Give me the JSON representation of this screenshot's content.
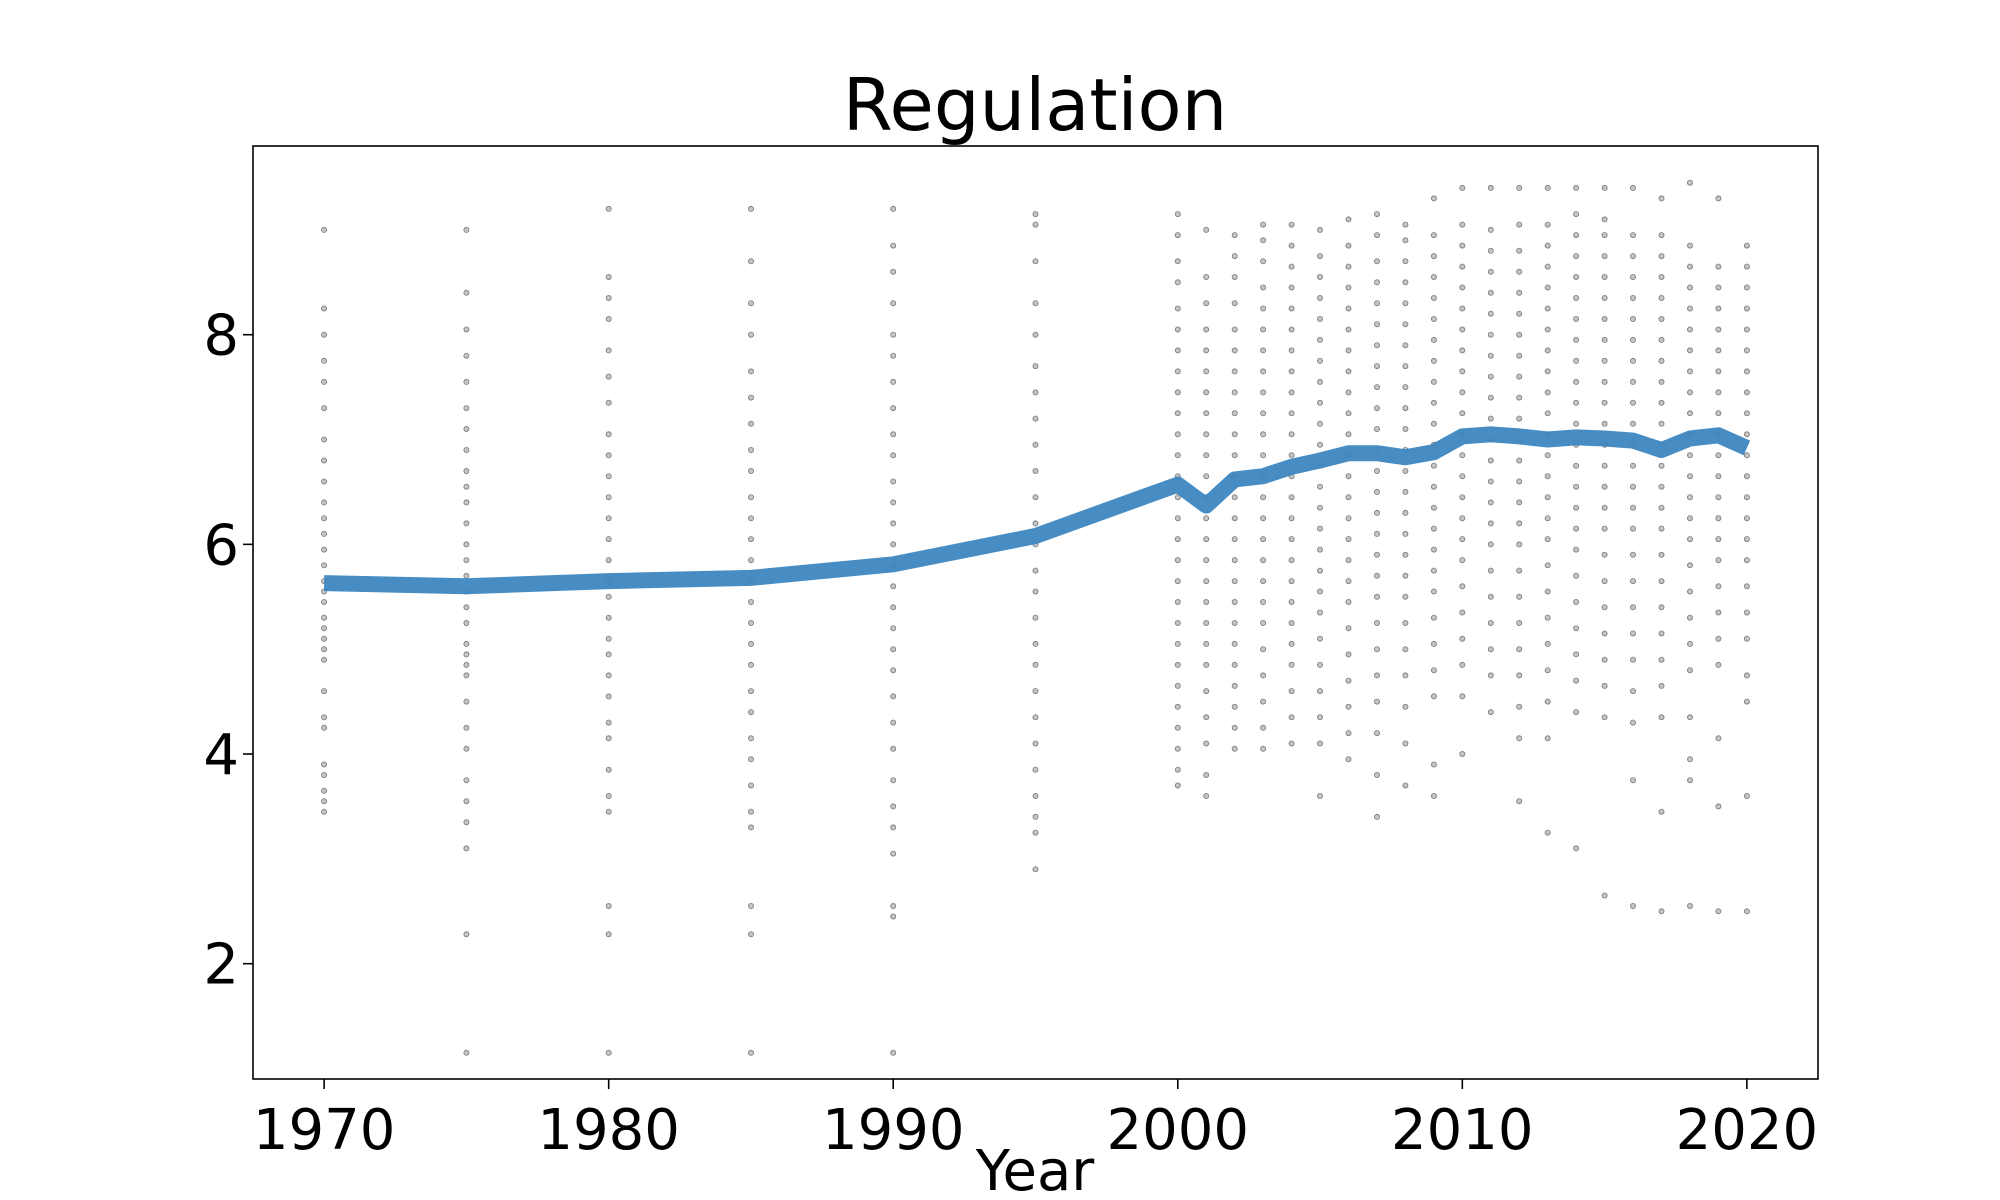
{
  "chart_data": {
    "type": "scatter",
    "title": "Regulation",
    "xlabel": "Year",
    "ylabel": "",
    "xlim": [
      1967.5,
      2022.5
    ],
    "ylim": [
      0.9,
      9.8
    ],
    "xticks": [
      1970,
      1980,
      1990,
      2000,
      2010,
      2020
    ],
    "yticks": [
      2,
      4,
      6,
      8
    ],
    "grid": false,
    "legend": "none",
    "colors": {
      "line": "#3d87c1",
      "points": "#555555"
    },
    "scatter": {
      "years": [
        1970,
        1975,
        1980,
        1985,
        1990,
        1995,
        2000,
        2001,
        2002,
        2003,
        2004,
        2005,
        2006,
        2007,
        2008,
        2009,
        2010,
        2011,
        2012,
        2013,
        2014,
        2015,
        2016,
        2017,
        2018,
        2019,
        2020
      ],
      "values_by_year": [
        [
          3.45,
          3.55,
          3.65,
          3.8,
          3.9,
          4.25,
          4.35,
          4.6,
          4.9,
          5.0,
          5.1,
          5.2,
          5.3,
          5.45,
          5.55,
          5.65,
          5.8,
          5.95,
          6.1,
          6.25,
          6.4,
          6.6,
          6.8,
          7.0,
          7.3,
          7.55,
          7.75,
          8.0,
          8.25,
          9.0
        ],
        [
          1.15,
          2.28,
          3.1,
          3.35,
          3.55,
          3.75,
          4.05,
          4.25,
          4.5,
          4.75,
          4.85,
          4.95,
          5.05,
          5.25,
          5.4,
          5.55,
          5.7,
          5.85,
          6.0,
          6.2,
          6.4,
          6.55,
          6.7,
          6.9,
          7.1,
          7.3,
          7.55,
          7.8,
          8.05,
          8.4,
          9.0
        ],
        [
          1.15,
          2.28,
          2.55,
          3.45,
          3.6,
          3.85,
          4.15,
          4.3,
          4.55,
          4.75,
          4.95,
          5.1,
          5.3,
          5.5,
          5.65,
          5.85,
          6.05,
          6.25,
          6.45,
          6.65,
          6.85,
          7.05,
          7.35,
          7.6,
          7.85,
          8.15,
          8.35,
          8.55,
          9.2
        ],
        [
          1.15,
          2.28,
          2.55,
          3.3,
          3.45,
          3.7,
          3.95,
          4.15,
          4.4,
          4.6,
          4.85,
          5.05,
          5.25,
          5.45,
          5.65,
          5.85,
          6.05,
          6.25,
          6.45,
          6.7,
          6.9,
          7.15,
          7.4,
          7.65,
          8.0,
          8.3,
          8.7,
          9.2
        ],
        [
          1.15,
          2.45,
          2.55,
          3.05,
          3.3,
          3.5,
          3.75,
          4.05,
          4.3,
          4.55,
          4.8,
          5.0,
          5.2,
          5.4,
          5.6,
          5.8,
          6.0,
          6.2,
          6.4,
          6.6,
          6.85,
          7.05,
          7.3,
          7.55,
          7.8,
          8.0,
          8.3,
          8.6,
          8.85,
          9.2
        ],
        [
          2.9,
          3.25,
          3.4,
          3.6,
          3.85,
          4.1,
          4.35,
          4.6,
          4.85,
          5.05,
          5.3,
          5.55,
          5.75,
          6.0,
          6.2,
          6.45,
          6.7,
          6.95,
          7.2,
          7.45,
          7.7,
          8.0,
          8.3,
          8.7,
          9.05,
          9.15
        ],
        [
          3.7,
          3.85,
          4.05,
          4.25,
          4.45,
          4.65,
          4.85,
          5.05,
          5.25,
          5.45,
          5.65,
          5.85,
          6.05,
          6.25,
          6.45,
          6.65,
          6.85,
          7.05,
          7.25,
          7.45,
          7.65,
          7.85,
          8.05,
          8.25,
          8.5,
          8.7,
          8.95,
          9.15
        ],
        [
          3.6,
          3.8,
          4.1,
          4.35,
          4.6,
          4.85,
          5.05,
          5.25,
          5.45,
          5.65,
          5.85,
          6.05,
          6.25,
          6.45,
          6.65,
          6.85,
          7.05,
          7.25,
          7.45,
          7.65,
          7.85,
          8.05,
          8.3,
          8.55,
          9.0
        ],
        [
          4.05,
          4.25,
          4.45,
          4.65,
          4.85,
          5.05,
          5.25,
          5.45,
          5.65,
          5.85,
          6.05,
          6.25,
          6.45,
          6.65,
          6.85,
          7.05,
          7.25,
          7.45,
          7.65,
          7.85,
          8.05,
          8.3,
          8.55,
          8.75,
          8.95
        ],
        [
          4.05,
          4.25,
          4.5,
          4.75,
          5.0,
          5.25,
          5.45,
          5.65,
          5.85,
          6.05,
          6.25,
          6.45,
          6.65,
          6.85,
          7.05,
          7.25,
          7.45,
          7.65,
          7.85,
          8.05,
          8.25,
          8.45,
          8.7,
          8.9,
          9.05
        ],
        [
          4.1,
          4.35,
          4.6,
          4.85,
          5.05,
          5.25,
          5.45,
          5.65,
          5.85,
          6.05,
          6.25,
          6.45,
          6.65,
          6.85,
          7.05,
          7.25,
          7.45,
          7.65,
          7.85,
          8.05,
          8.25,
          8.45,
          8.65,
          8.85,
          9.05
        ],
        [
          3.6,
          4.1,
          4.35,
          4.6,
          4.85,
          5.1,
          5.35,
          5.55,
          5.75,
          5.95,
          6.15,
          6.35,
          6.55,
          6.75,
          6.95,
          7.15,
          7.35,
          7.55,
          7.75,
          7.95,
          8.15,
          8.35,
          8.55,
          8.75,
          9.0
        ],
        [
          3.95,
          4.2,
          4.45,
          4.7,
          4.95,
          5.2,
          5.45,
          5.65,
          5.85,
          6.05,
          6.25,
          6.45,
          6.65,
          6.85,
          7.05,
          7.25,
          7.45,
          7.65,
          7.85,
          8.05,
          8.25,
          8.45,
          8.65,
          8.85,
          9.1
        ],
        [
          3.4,
          3.8,
          4.2,
          4.5,
          4.75,
          5.0,
          5.25,
          5.5,
          5.7,
          5.9,
          6.1,
          6.3,
          6.5,
          6.7,
          6.9,
          7.1,
          7.3,
          7.5,
          7.7,
          7.9,
          8.1,
          8.3,
          8.5,
          8.7,
          8.95,
          9.15
        ],
        [
          3.7,
          4.1,
          4.45,
          4.75,
          5.0,
          5.25,
          5.5,
          5.7,
          5.9,
          6.1,
          6.3,
          6.5,
          6.7,
          6.9,
          7.1,
          7.3,
          7.5,
          7.7,
          7.9,
          8.1,
          8.3,
          8.5,
          8.7,
          8.9,
          9.05
        ],
        [
          3.6,
          3.9,
          4.55,
          4.8,
          5.05,
          5.3,
          5.55,
          5.75,
          5.95,
          6.15,
          6.35,
          6.55,
          6.75,
          6.95,
          7.15,
          7.35,
          7.55,
          7.75,
          7.95,
          8.15,
          8.35,
          8.55,
          8.75,
          8.95,
          9.3
        ],
        [
          4.0,
          4.55,
          4.85,
          5.1,
          5.35,
          5.6,
          5.85,
          6.05,
          6.25,
          6.45,
          6.65,
          6.85,
          7.05,
          7.25,
          7.45,
          7.65,
          7.85,
          8.05,
          8.25,
          8.45,
          8.65,
          8.85,
          9.05,
          9.4
        ],
        [
          4.4,
          4.75,
          5.0,
          5.25,
          5.5,
          5.75,
          6.0,
          6.2,
          6.4,
          6.6,
          6.8,
          7.0,
          7.2,
          7.4,
          7.6,
          7.8,
          8.0,
          8.2,
          8.4,
          8.6,
          8.8,
          9.0,
          9.4
        ],
        [
          3.55,
          4.15,
          4.45,
          4.75,
          5.0,
          5.25,
          5.5,
          5.75,
          6.0,
          6.2,
          6.4,
          6.6,
          6.8,
          7.0,
          7.2,
          7.4,
          7.6,
          7.8,
          8.0,
          8.2,
          8.4,
          8.6,
          8.8,
          9.05,
          9.4
        ],
        [
          3.25,
          4.15,
          4.5,
          4.8,
          5.05,
          5.3,
          5.55,
          5.8,
          6.05,
          6.25,
          6.45,
          6.65,
          6.85,
          7.05,
          7.25,
          7.45,
          7.65,
          7.85,
          8.05,
          8.25,
          8.45,
          8.65,
          8.85,
          9.05,
          9.4
        ],
        [
          3.1,
          4.4,
          4.7,
          4.95,
          5.2,
          5.45,
          5.7,
          5.95,
          6.15,
          6.35,
          6.55,
          6.75,
          6.95,
          7.15,
          7.35,
          7.55,
          7.75,
          7.95,
          8.15,
          8.35,
          8.55,
          8.75,
          8.95,
          9.15,
          9.4
        ],
        [
          2.65,
          4.35,
          4.65,
          4.9,
          5.15,
          5.4,
          5.65,
          5.9,
          6.15,
          6.35,
          6.55,
          6.75,
          6.95,
          7.15,
          7.35,
          7.55,
          7.75,
          7.95,
          8.15,
          8.35,
          8.55,
          8.75,
          8.95,
          9.1,
          9.4
        ],
        [
          2.55,
          3.75,
          4.3,
          4.6,
          4.9,
          5.15,
          5.4,
          5.65,
          5.9,
          6.15,
          6.35,
          6.55,
          6.75,
          6.95,
          7.15,
          7.35,
          7.55,
          7.75,
          7.95,
          8.15,
          8.35,
          8.55,
          8.75,
          8.95,
          9.4
        ],
        [
          2.5,
          3.45,
          4.35,
          4.65,
          4.9,
          5.15,
          5.4,
          5.65,
          5.9,
          6.15,
          6.35,
          6.55,
          6.75,
          6.95,
          7.15,
          7.35,
          7.55,
          7.75,
          7.95,
          8.15,
          8.35,
          8.55,
          8.75,
          8.95,
          9.3
        ],
        [
          2.55,
          3.75,
          3.95,
          4.35,
          4.8,
          5.05,
          5.3,
          5.55,
          5.8,
          6.05,
          6.25,
          6.45,
          6.65,
          6.85,
          7.05,
          7.25,
          7.45,
          7.65,
          7.85,
          8.05,
          8.25,
          8.45,
          8.65,
          8.85,
          9.45
        ],
        [
          2.5,
          3.5,
          4.15,
          4.85,
          5.1,
          5.35,
          5.6,
          5.85,
          6.05,
          6.25,
          6.45,
          6.65,
          6.85,
          7.05,
          7.25,
          7.45,
          7.65,
          7.85,
          8.05,
          8.25,
          8.45,
          8.65,
          9.3
        ],
        [
          2.5,
          3.6,
          4.5,
          4.75,
          5.1,
          5.35,
          5.6,
          5.85,
          6.05,
          6.25,
          6.45,
          6.65,
          6.85,
          7.05,
          7.25,
          7.45,
          7.65,
          7.85,
          8.05,
          8.25,
          8.45,
          8.65,
          8.85
        ]
      ]
    },
    "line": {
      "x": [
        1970,
        1975,
        1980,
        1985,
        1990,
        1995,
        2000,
        2001,
        2002,
        2003,
        2004,
        2005,
        2006,
        2007,
        2008,
        2009,
        2010,
        2011,
        2012,
        2013,
        2014,
        2015,
        2016,
        2017,
        2018,
        2019,
        2020
      ],
      "y": [
        5.63,
        5.6,
        5.65,
        5.68,
        5.81,
        6.08,
        6.57,
        6.37,
        6.62,
        6.65,
        6.74,
        6.8,
        6.87,
        6.87,
        6.83,
        6.88,
        7.03,
        7.05,
        7.03,
        7.0,
        7.02,
        7.01,
        6.99,
        6.9,
        7.01,
        7.04,
        6.92
      ]
    }
  }
}
